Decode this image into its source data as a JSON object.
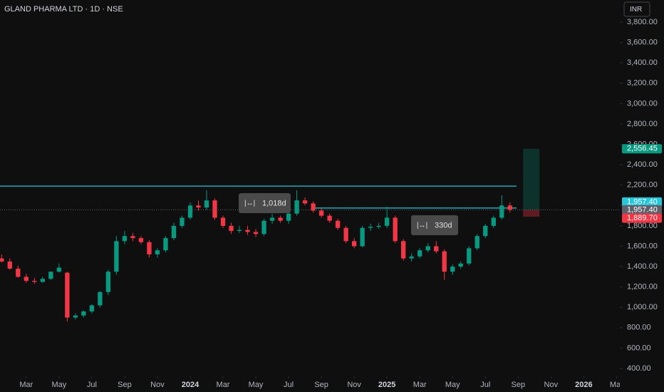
{
  "chart_data": {
    "type": "candlestick",
    "title": "GLAND PHARMA LTD · 1D · NSE",
    "currency": "INR",
    "up_color": "#089981",
    "down_color": "#f23645",
    "x": [
      -1.5,
      -1,
      -0.5,
      0,
      0.5,
      1,
      1.5,
      2,
      2.5,
      3,
      3.5,
      4,
      4.5,
      5,
      5.5,
      6,
      6.5,
      7,
      7.5,
      8,
      8.5,
      9,
      9.5,
      10,
      10.5,
      11,
      11.5,
      12,
      12.5,
      13,
      13.5,
      14,
      14.5,
      15,
      15.5,
      16,
      16.5,
      17,
      17.5,
      18,
      18.5,
      19,
      19.5,
      20,
      20.5,
      21,
      21.5,
      22,
      22.5,
      23,
      23.5,
      24,
      24.5,
      25,
      25.5,
      26,
      26.5,
      27,
      27.5,
      28,
      28.5,
      29,
      29.5
    ],
    "open": [
      1480,
      1450,
      1380,
      1300,
      1260,
      1250,
      1280,
      1350,
      1340,
      900,
      920,
      960,
      1020,
      1150,
      1350,
      1650,
      1700,
      1680,
      1640,
      1520,
      1560,
      1680,
      1800,
      1880,
      2000,
      1980,
      2050,
      1880,
      1800,
      1750,
      1760,
      1740,
      1720,
      1850,
      1880,
      1850,
      1920,
      2050,
      2020,
      1950,
      1900,
      1850,
      1780,
      1650,
      1600,
      1780,
      1790,
      1800,
      1880,
      1650,
      1480,
      1500,
      1560,
      1600,
      1550,
      1350,
      1400,
      1430,
      1580,
      1700,
      1800,
      1880,
      2000
    ],
    "high": [
      1520,
      1480,
      1410,
      1330,
      1290,
      1300,
      1350,
      1430,
      1350,
      940,
      970,
      1030,
      1160,
      1370,
      1700,
      1750,
      1730,
      1700,
      1660,
      1580,
      1700,
      1830,
      1900,
      2030,
      2050,
      2150,
      2070,
      1900,
      1830,
      1800,
      1800,
      1770,
      1870,
      1920,
      1900,
      1940,
      2150,
      2080,
      2040,
      1970,
      1920,
      1870,
      1800,
      1680,
      1800,
      1820,
      1830,
      1990,
      1900,
      1670,
      1530,
      1580,
      1630,
      1650,
      1570,
      1420,
      1450,
      1600,
      1720,
      1820,
      1900,
      2100,
      2030
    ],
    "low": [
      1440,
      1370,
      1290,
      1240,
      1230,
      1240,
      1270,
      1340,
      860,
      880,
      900,
      940,
      1000,
      1120,
      1320,
      1620,
      1650,
      1620,
      1490,
      1490,
      1540,
      1660,
      1780,
      1860,
      1950,
      1960,
      1860,
      1780,
      1720,
      1730,
      1710,
      1690,
      1700,
      1820,
      1830,
      1820,
      1900,
      2000,
      1930,
      1880,
      1830,
      1760,
      1630,
      1580,
      1590,
      1750,
      1770,
      1780,
      1630,
      1460,
      1450,
      1480,
      1540,
      1530,
      1270,
      1320,
      1380,
      1410,
      1560,
      1680,
      1780,
      1860,
      1930
    ],
    "close": [
      1450,
      1380,
      1300,
      1260,
      1250,
      1280,
      1350,
      1390,
      900,
      920,
      960,
      1020,
      1150,
      1350,
      1650,
      1700,
      1680,
      1640,
      1520,
      1560,
      1680,
      1800,
      1880,
      2000,
      1980,
      2050,
      1880,
      1800,
      1750,
      1760,
      1740,
      1720,
      1850,
      1880,
      1850,
      1920,
      2050,
      2020,
      1950,
      1900,
      1850,
      1780,
      1650,
      1600,
      1780,
      1790,
      1800,
      1880,
      1650,
      1480,
      1500,
      1560,
      1600,
      1550,
      1350,
      1400,
      1430,
      1580,
      1700,
      1800,
      1880,
      2000,
      1957.4
    ],
    "xlim": [
      -1.6,
      36.2
    ],
    "xticks": [
      {
        "value": 0,
        "label": "Mar"
      },
      {
        "value": 2,
        "label": "May"
      },
      {
        "value": 4,
        "label": "Jul"
      },
      {
        "value": 6,
        "label": "Sep"
      },
      {
        "value": 8,
        "label": "Nov"
      },
      {
        "value": 10,
        "label": "2024"
      },
      {
        "value": 12,
        "label": "Mar"
      },
      {
        "value": 14,
        "label": "May"
      },
      {
        "value": 16,
        "label": "Jul"
      },
      {
        "value": 18,
        "label": "Sep"
      },
      {
        "value": 20,
        "label": "Nov"
      },
      {
        "value": 22,
        "label": "2025"
      },
      {
        "value": 24,
        "label": "Mar"
      },
      {
        "value": 26,
        "label": "May"
      },
      {
        "value": 28,
        "label": "Jul"
      },
      {
        "value": 30,
        "label": "Sep"
      },
      {
        "value": 32,
        "label": "Nov"
      },
      {
        "value": 34,
        "label": "2026"
      },
      {
        "value": 36,
        "label": "Mar"
      }
    ],
    "ylim": [
      323,
      4017
    ],
    "yticks": [
      {
        "value": 400,
        "label": "400.00"
      },
      {
        "value": 600,
        "label": "600.00"
      },
      {
        "value": 800,
        "label": "800.00"
      },
      {
        "value": 1000,
        "label": "1,000.00"
      },
      {
        "value": 1200,
        "label": "1,200.00"
      },
      {
        "value": 1400,
        "label": "1,400.00"
      },
      {
        "value": 1600,
        "label": "1,600.00"
      },
      {
        "value": 1800,
        "label": "1,800.00"
      },
      {
        "value": 2000,
        "label": "2,000.00"
      },
      {
        "value": 2200,
        "label": "2,200.00"
      },
      {
        "value": 2400,
        "label": "2,400.00"
      },
      {
        "value": 2600,
        "label": "2,600.00"
      },
      {
        "value": 2800,
        "label": "2,800.00"
      },
      {
        "value": 3000,
        "label": "3,000.00"
      },
      {
        "value": 3200,
        "label": "3,200.00"
      },
      {
        "value": 3400,
        "label": "3,400.00"
      },
      {
        "value": 3600,
        "label": "3,600.00"
      },
      {
        "value": 3800,
        "label": "3,800.00"
      }
    ],
    "horizontal_lines": [
      {
        "value": 2190,
        "from": -1.6,
        "to": 29.9,
        "color": "#26c6da"
      },
      {
        "value": 1975,
        "from": 17.5,
        "to": 29.9,
        "color": "#26c6da"
      }
    ],
    "measures": [
      {
        "label": "1,018d"
      },
      {
        "label": "330d"
      }
    ],
    "position": {
      "from": 30.3,
      "to": 31.3,
      "entry": 1957.4,
      "target": 2556.45,
      "stop": 1889.7
    },
    "price_markers": [
      {
        "value": 2556.45,
        "label": "2,556.45",
        "color": "#089981"
      },
      {
        "value": 1957.4,
        "label": "1,957.40",
        "color": "#26c6da"
      },
      {
        "value": 1957.4,
        "label": "1,957.40",
        "color": "#5d606b"
      },
      {
        "value": 1889.7,
        "label": "1,889.70",
        "color": "#f23645"
      }
    ]
  }
}
